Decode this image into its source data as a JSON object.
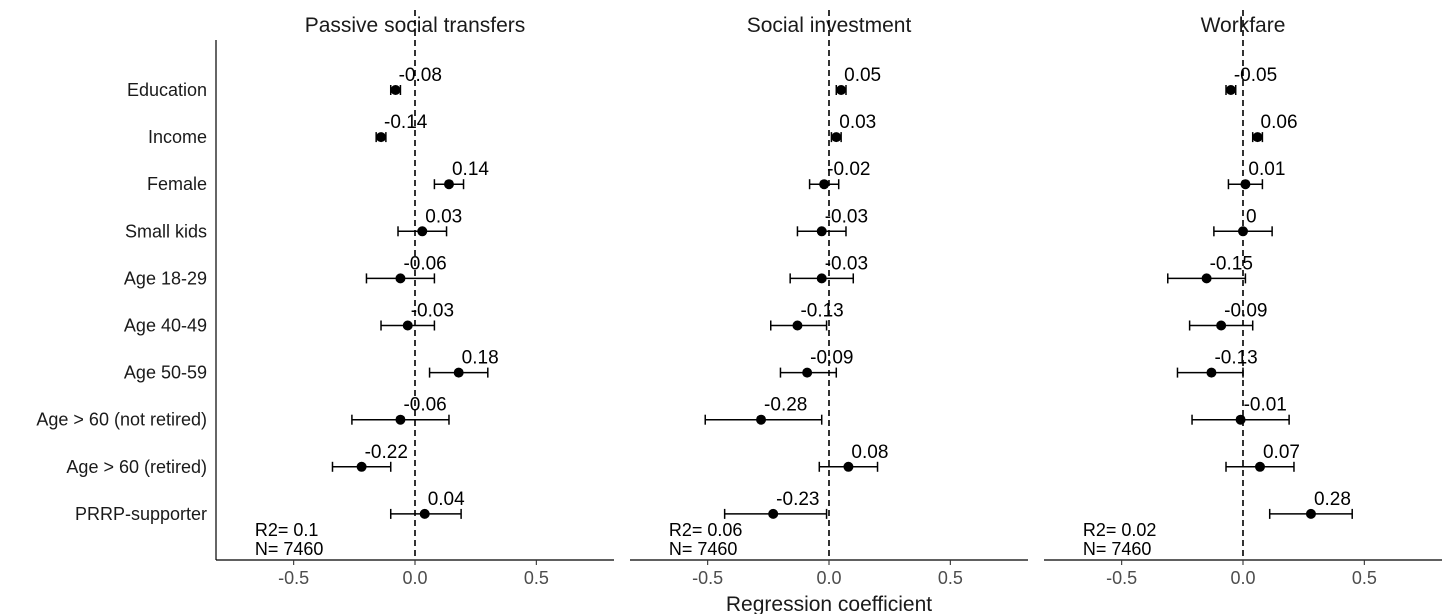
{
  "chart_data": {
    "type": "scatter",
    "subtype": "coefficient-plot with error bars",
    "xlabel": "Regression coefficient",
    "xticks": [
      -0.5,
      0.0,
      0.5
    ],
    "xtick_labels": [
      "-0.5",
      "0.0",
      "0.5"
    ],
    "xlim": [
      -0.82,
      0.82
    ],
    "reference_line": 0,
    "grid": false,
    "categories": [
      "Education",
      "Income",
      "Female",
      "Small kids",
      "Age 18-29",
      "Age 40-49",
      "Age 50-59",
      "Age > 60 (not retired)",
      "Age > 60 (retired)",
      "PRRP-supporter"
    ],
    "panels": [
      {
        "title": "Passive social transfers",
        "estimates": [
          -0.08,
          -0.14,
          0.14,
          0.03,
          -0.06,
          -0.03,
          0.18,
          -0.06,
          -0.22,
          0.04
        ],
        "labels": [
          "-0.08",
          "-0.14",
          "0.14",
          "0.03",
          "-0.06",
          "-0.03",
          "0.18",
          "-0.06",
          "-0.22",
          "0.04"
        ],
        "ci_low": [
          -0.1,
          -0.16,
          0.08,
          -0.07,
          -0.2,
          -0.14,
          0.06,
          -0.26,
          -0.34,
          -0.1
        ],
        "ci_high": [
          -0.06,
          -0.12,
          0.2,
          0.13,
          0.08,
          0.08,
          0.3,
          0.14,
          -0.1,
          0.19
        ],
        "r2_text": "R2= 0.1",
        "n_text": "N= 7460"
      },
      {
        "title": "Social investment",
        "estimates": [
          0.05,
          0.03,
          -0.02,
          -0.03,
          -0.03,
          -0.13,
          -0.09,
          -0.28,
          0.08,
          -0.23
        ],
        "labels": [
          "0.05",
          "0.03",
          "-0.02",
          "-0.03",
          "-0.03",
          "-0.13",
          "-0.09",
          "-0.28",
          "0.08",
          "-0.23"
        ],
        "ci_low": [
          0.03,
          0.01,
          -0.08,
          -0.13,
          -0.16,
          -0.24,
          -0.2,
          -0.51,
          -0.04,
          -0.43
        ],
        "ci_high": [
          0.07,
          0.05,
          0.04,
          0.07,
          0.1,
          -0.01,
          0.03,
          -0.03,
          0.2,
          -0.01
        ],
        "r2_text": "R2= 0.06",
        "n_text": "N= 7460"
      },
      {
        "title": "Workfare",
        "estimates": [
          -0.05,
          0.06,
          0.01,
          0,
          -0.15,
          -0.09,
          -0.13,
          -0.01,
          0.07,
          0.28
        ],
        "labels": [
          "-0.05",
          "0.06",
          "0.01",
          "0",
          "-0.15",
          "-0.09",
          "-0.13",
          "-0.01",
          "0.07",
          "0.28"
        ],
        "ci_low": [
          -0.07,
          0.04,
          -0.06,
          -0.12,
          -0.31,
          -0.22,
          -0.27,
          -0.21,
          -0.07,
          0.11
        ],
        "ci_high": [
          -0.03,
          0.08,
          0.08,
          0.12,
          0.01,
          0.04,
          0.0,
          0.19,
          0.21,
          0.45
        ],
        "r2_text": "R2= 0.02",
        "n_text": "N= 7460"
      }
    ]
  }
}
